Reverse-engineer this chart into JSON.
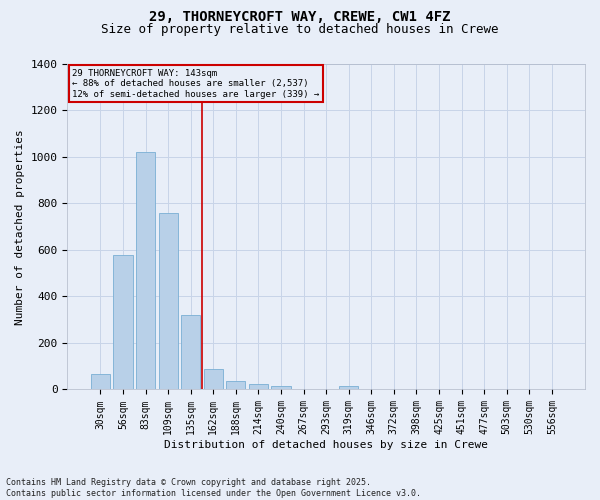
{
  "title_line1": "29, THORNEYCROFT WAY, CREWE, CW1 4FZ",
  "title_line2": "Size of property relative to detached houses in Crewe",
  "xlabel": "Distribution of detached houses by size in Crewe",
  "ylabel": "Number of detached properties",
  "footnote": "Contains HM Land Registry data © Crown copyright and database right 2025.\nContains public sector information licensed under the Open Government Licence v3.0.",
  "categories": [
    "30sqm",
    "56sqm",
    "83sqm",
    "109sqm",
    "135sqm",
    "162sqm",
    "188sqm",
    "214sqm",
    "240sqm",
    "267sqm",
    "293sqm",
    "319sqm",
    "346sqm",
    "372sqm",
    "398sqm",
    "425sqm",
    "451sqm",
    "477sqm",
    "503sqm",
    "530sqm",
    "556sqm"
  ],
  "values": [
    65,
    578,
    1020,
    758,
    320,
    90,
    38,
    22,
    13,
    0,
    0,
    17,
    0,
    0,
    0,
    0,
    0,
    0,
    0,
    0,
    0
  ],
  "bar_color": "#b8d0e8",
  "bar_edge_color": "#7aafd4",
  "grid_color": "#c8d4e8",
  "background_color": "#e8eef8",
  "red_line_color": "#cc0000",
  "red_line_index": 4.5,
  "annotation_line1": "29 THORNEYCROFT WAY: 143sqm",
  "annotation_line2": "← 88% of detached houses are smaller (2,537)",
  "annotation_line3": "12% of semi-detached houses are larger (339) →",
  "annotation_box_edgecolor": "#cc0000",
  "ylim_max": 1400,
  "yticks": [
    0,
    200,
    400,
    600,
    800,
    1000,
    1200,
    1400
  ],
  "title_fontsize": 10,
  "subtitle_fontsize": 9,
  "ylabel_fontsize": 8,
  "xlabel_fontsize": 8,
  "tick_fontsize": 7,
  "footnote_fontsize": 6
}
